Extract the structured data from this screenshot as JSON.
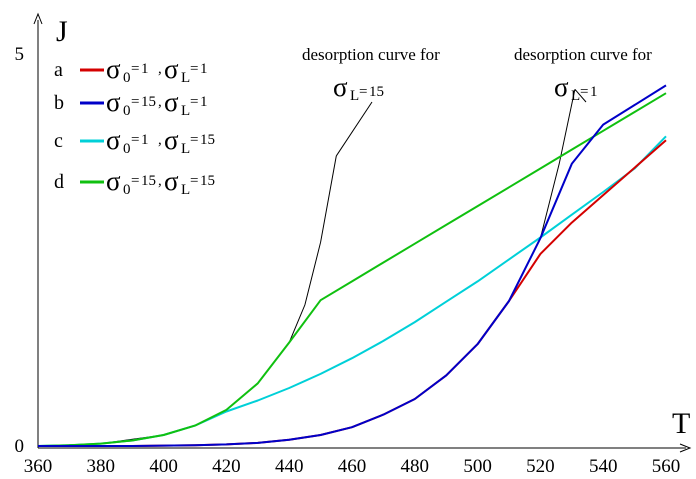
{
  "chart_data": {
    "type": "line",
    "xlabel": "T",
    "ylabel": "J",
    "xlim": [
      360,
      560
    ],
    "ylim": [
      0,
      5
    ],
    "x_ticks": [
      "360",
      "380",
      "400",
      "420",
      "440",
      "460",
      "480",
      "500",
      "520",
      "540",
      "560"
    ],
    "y_ticks": [
      "0",
      "5"
    ],
    "series": [
      {
        "name": "a",
        "sigma0": "1",
        "sigmaL": "1",
        "color": "#d40000",
        "x": [
          360,
          370,
          380,
          390,
          400,
          410,
          420,
          430,
          440,
          450,
          460,
          470,
          480,
          490,
          500,
          510,
          520,
          530,
          540,
          550,
          560
        ],
        "y": [
          0,
          0,
          0,
          0,
          0.005,
          0.01,
          0.02,
          0.04,
          0.08,
          0.14,
          0.24,
          0.4,
          0.6,
          0.9,
          1.3,
          1.85,
          2.45,
          2.85,
          3.2,
          3.55,
          3.9
        ]
      },
      {
        "name": "b",
        "sigma0": "15",
        "sigmaL": "1",
        "color": "#0000c8",
        "x": [
          360,
          370,
          380,
          390,
          400,
          410,
          420,
          430,
          440,
          450,
          460,
          470,
          480,
          490,
          500,
          510,
          520,
          530,
          540,
          550,
          560
        ],
        "y": [
          0,
          0,
          0,
          0,
          0.005,
          0.01,
          0.02,
          0.04,
          0.08,
          0.14,
          0.24,
          0.4,
          0.6,
          0.9,
          1.3,
          1.85,
          2.65,
          3.6,
          4.1,
          4.35,
          4.6
        ]
      },
      {
        "name": "c",
        "sigma0": "1",
        "sigmaL": "15",
        "color": "#00d0d8",
        "x": [
          360,
          370,
          380,
          390,
          400,
          410,
          420,
          430,
          440,
          450,
          460,
          470,
          480,
          490,
          500,
          510,
          520,
          530,
          540,
          550,
          560
        ],
        "y": [
          0,
          0.01,
          0.03,
          0.07,
          0.14,
          0.26,
          0.44,
          0.58,
          0.74,
          0.92,
          1.12,
          1.34,
          1.58,
          1.84,
          2.1,
          2.38,
          2.66,
          2.95,
          3.24,
          3.54,
          3.95
        ]
      },
      {
        "name": "d",
        "sigma0": "15",
        "sigmaL": "15",
        "color": "#10c010",
        "x": [
          360,
          370,
          380,
          390,
          400,
          410,
          420,
          430,
          440,
          450,
          460,
          470,
          480,
          490,
          500,
          510,
          520,
          530,
          540,
          550,
          560
        ],
        "y": [
          0,
          0.01,
          0.03,
          0.07,
          0.14,
          0.26,
          0.46,
          0.8,
          1.32,
          1.86,
          2.1,
          2.34,
          2.58,
          2.82,
          3.06,
          3.3,
          3.54,
          3.78,
          4.02,
          4.26,
          4.5
        ]
      }
    ],
    "desorption_curves": [
      {
        "label_line1": "desorption curve for",
        "sigma_label": "15",
        "x": [
          360,
          380,
          400,
          410,
          420,
          430,
          440,
          445,
          450,
          455
        ],
        "y": [
          0,
          0.03,
          0.14,
          0.26,
          0.46,
          0.8,
          1.32,
          1.8,
          2.6,
          3.7
        ]
      },
      {
        "label_line1": "desorption curve for",
        "sigma_label": "1",
        "x": [
          500,
          510,
          520,
          526,
          531
        ],
        "y": [
          1.3,
          1.85,
          2.65,
          3.6,
          4.55
        ]
      }
    ]
  }
}
